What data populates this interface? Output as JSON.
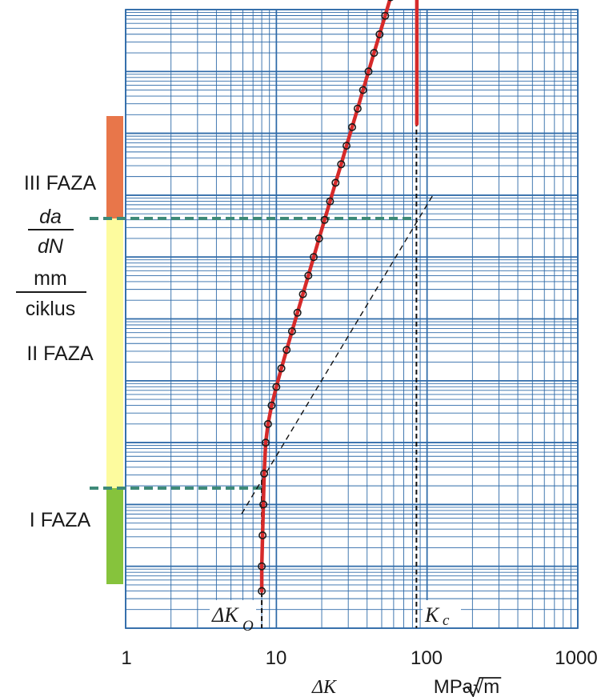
{
  "chart_data": {
    "type": "scatter",
    "x_scale": "log",
    "y_scale": "log",
    "xlim": [
      1,
      1000
    ],
    "x_ticks": [
      "1",
      "10",
      "100",
      "1000"
    ],
    "grid": true,
    "xlabel": "ΔK",
    "x_unit": "MPa√m",
    "ylabel": {
      "numerator": "da",
      "denominator": "dN",
      "unit_top": "mm",
      "unit_bottom": "ciklus"
    },
    "markers": {
      "threshold": {
        "label_main": "ΔK",
        "label_sub": "O",
        "x": 8
      },
      "critical": {
        "label_main": "K",
        "label_sub": "c",
        "x": 85
      }
    },
    "phases": [
      {
        "label": "III FAZA",
        "color": "#e8764a"
      },
      {
        "label": "II FAZA",
        "color": "#fdfb9e"
      },
      {
        "label": "I FAZA",
        "color": "#86c33c"
      }
    ],
    "colors": {
      "grid": "#2e6aa8",
      "curve": "#d62a2a",
      "points": "#1a1a1a",
      "phase_boundary": "#3e8a78"
    },
    "series": [
      {
        "points": [
          [
            8.0,
            0.06
          ],
          [
            8.0,
            0.1
          ],
          [
            8.1,
            0.15
          ],
          [
            8.2,
            0.2
          ],
          [
            8.3,
            0.25
          ],
          [
            8.5,
            0.3
          ],
          [
            8.8,
            0.33
          ],
          [
            9.3,
            0.36
          ],
          [
            10.0,
            0.39
          ],
          [
            10.8,
            0.42
          ],
          [
            11.7,
            0.45
          ],
          [
            12.7,
            0.48
          ],
          [
            13.8,
            0.51
          ],
          [
            15.0,
            0.54
          ],
          [
            16.3,
            0.57
          ],
          [
            17.7,
            0.6
          ],
          [
            19.2,
            0.63
          ],
          [
            20.9,
            0.66
          ],
          [
            22.7,
            0.69
          ],
          [
            24.7,
            0.72
          ],
          [
            26.9,
            0.75
          ],
          [
            29.2,
            0.78
          ],
          [
            31.8,
            0.81
          ],
          [
            34.6,
            0.84
          ],
          [
            37.6,
            0.87
          ],
          [
            40.9,
            0.9
          ],
          [
            44.5,
            0.93
          ],
          [
            48.4,
            0.96
          ],
          [
            52.7,
            0.99
          ],
          [
            57.3,
            1.02
          ],
          [
            62.3,
            1.05
          ],
          [
            67.8,
            1.08
          ],
          [
            73.7,
            1.11
          ],
          [
            78.5,
            1.14
          ],
          [
            82.0,
            1.17
          ],
          [
            84.2,
            1.2
          ],
          [
            85.0,
            1.23
          ],
          [
            85.3,
            1.26
          ],
          [
            85.4,
            1.29
          ],
          [
            85.5,
            1.32
          ]
        ]
      }
    ]
  }
}
